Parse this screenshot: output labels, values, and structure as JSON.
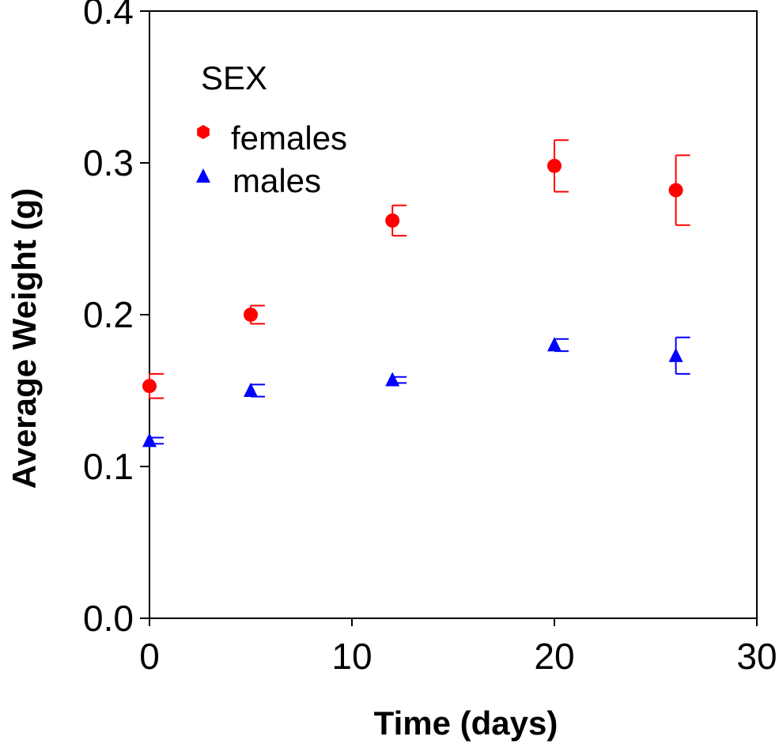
{
  "chart_data": {
    "type": "scatter",
    "title": "",
    "xlabel": "Time (days)",
    "ylabel": "Average Weight (g)",
    "xlim": [
      0,
      30
    ],
    "ylim": [
      0.0,
      0.4
    ],
    "xticks": [
      0,
      10,
      20,
      30
    ],
    "xtick_labels": [
      "0",
      "10",
      "20",
      "30"
    ],
    "yticks": [
      0.0,
      0.1,
      0.2,
      0.3,
      0.4
    ],
    "ytick_labels": [
      "0.0",
      "0.1",
      "0.2",
      "0.3",
      "0.4"
    ],
    "grid": false,
    "legend": {
      "title": "SEX",
      "position": "top-left"
    },
    "series": [
      {
        "name": "females",
        "color": "#ff0000",
        "marker": "circle",
        "x": [
          0,
          5,
          12,
          20,
          26
        ],
        "y": [
          0.153,
          0.2,
          0.262,
          0.298,
          0.282
        ],
        "err": [
          0.008,
          0.006,
          0.01,
          0.017,
          0.023
        ]
      },
      {
        "name": "males",
        "color": "#0000ff",
        "marker": "triangle",
        "x": [
          0,
          5,
          12,
          20,
          26
        ],
        "y": [
          0.117,
          0.15,
          0.157,
          0.18,
          0.173
        ],
        "err": [
          0.002,
          0.004,
          0.002,
          0.004,
          0.012
        ]
      }
    ]
  }
}
